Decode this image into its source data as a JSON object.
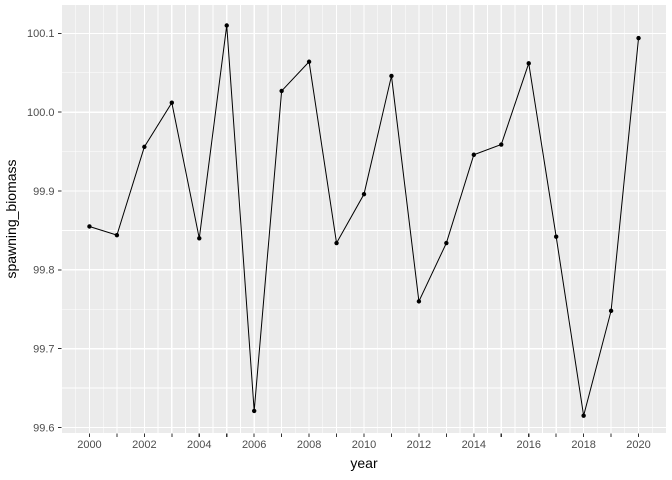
{
  "chart_data": {
    "type": "line",
    "title": "",
    "xlabel": "year",
    "ylabel": "spawning_biomass",
    "x": [
      2000,
      2001,
      2002,
      2003,
      2004,
      2005,
      2006,
      2007,
      2008,
      2009,
      2010,
      2011,
      2012,
      2013,
      2014,
      2015,
      2016,
      2017,
      2018,
      2019,
      2020
    ],
    "series": [
      {
        "name": "spawning_biomass",
        "values": [
          99.855,
          99.844,
          99.956,
          100.012,
          99.84,
          100.11,
          99.621,
          100.027,
          100.064,
          99.834,
          99.896,
          100.046,
          99.76,
          99.834,
          99.946,
          99.959,
          100.062,
          99.842,
          99.615,
          99.748,
          100.094
        ]
      }
    ],
    "xlim": [
      1999,
      2021
    ],
    "ylim": [
      99.593,
      100.136
    ],
    "x_ticks": [
      2000,
      2001,
      2002,
      2003,
      2004,
      2005,
      2006,
      2007,
      2008,
      2009,
      2010,
      2011,
      2012,
      2013,
      2014,
      2015,
      2016,
      2017,
      2018,
      2019,
      2020
    ],
    "x_labeled_ticks": [
      2000,
      2002,
      2004,
      2006,
      2008,
      2010,
      2012,
      2014,
      2016,
      2018,
      2020
    ],
    "x_tick_labels": [
      "2000",
      "2002",
      "2004",
      "2006",
      "2008",
      "2010",
      "2012",
      "2014",
      "2016",
      "2018",
      "2020"
    ],
    "x_minor": [
      1999.5,
      2000.5,
      2001.5,
      2002.5,
      2003.5,
      2004.5,
      2005.5,
      2006.5,
      2007.5,
      2008.5,
      2009.5,
      2010.5,
      2011.5,
      2012.5,
      2013.5,
      2014.5,
      2015.5,
      2016.5,
      2017.5,
      2018.5,
      2019.5,
      2020.5
    ],
    "y_ticks": [
      99.6,
      99.7,
      99.8,
      99.9,
      100.0,
      100.1
    ],
    "y_tick_labels": [
      "99.6",
      "99.7",
      "99.8",
      "99.9",
      "100.0",
      "100.1"
    ],
    "y_minor": [
      99.65,
      99.75,
      99.85,
      99.95,
      100.05
    ],
    "grid": "major+minor",
    "legend_position": "none",
    "marker": "circle",
    "colors": {
      "panel_bg": "#EBEBEB",
      "grid_major": "#FFFFFF",
      "grid_minor": "#FFFFFF",
      "line": "#000000",
      "point": "#000000",
      "tick_text": "#4D4D4D",
      "tick_mark": "#333333",
      "axis_title": "#000000"
    }
  }
}
